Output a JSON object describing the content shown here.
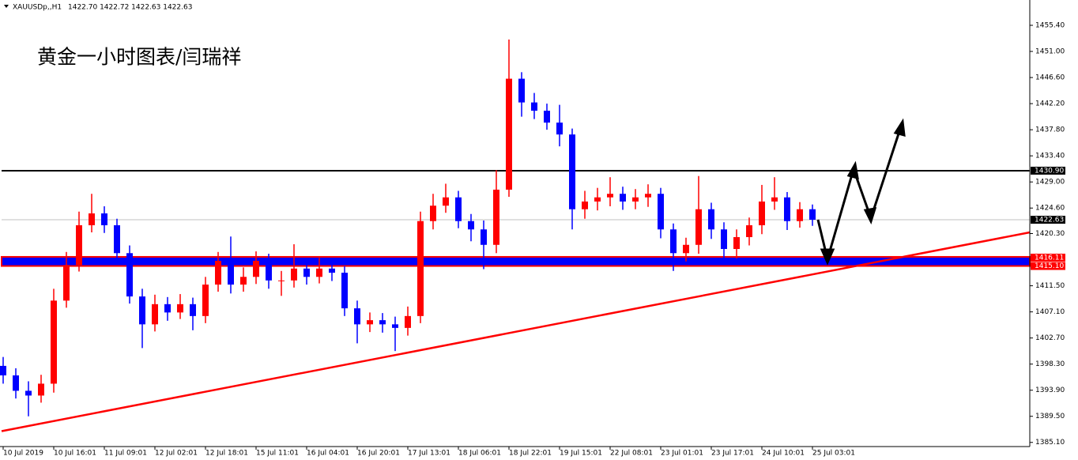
{
  "chart_data": {
    "type": "candlestick",
    "title": "黄金一小时图表/闫瑞祥",
    "header_symbol": "XAUUSDp,,H1",
    "header_quote": "1422.70 1422.72 1422.63 1422.63",
    "up_color": "#ff0000",
    "down_color": "#0000ff",
    "x": [
      0,
      4,
      8,
      12,
      16,
      20,
      24,
      28,
      32,
      36,
      40,
      44,
      48,
      52,
      56,
      60,
      64,
      68,
      72,
      76,
      80,
      84,
      88,
      92,
      96,
      100,
      104,
      108,
      112,
      116,
      120,
      124,
      128,
      132,
      136,
      140,
      144,
      148,
      152,
      156,
      160,
      164,
      168,
      172,
      176,
      180,
      184,
      188,
      192,
      196,
      200,
      204,
      208,
      212,
      216,
      220,
      224,
      228,
      232,
      236,
      240,
      244,
      248,
      252,
      256
    ],
    "open": [
      1398.0,
      1396.4,
      1393.8,
      1393.0,
      1395.0,
      1409.0,
      1415.0,
      1421.7,
      1423.7,
      1421.7,
      1417.0,
      1409.7,
      1405.0,
      1408.4,
      1407.0,
      1408.4,
      1406.4,
      1411.7,
      1415.7,
      1411.7,
      1413.0,
      1415.7,
      1412.4,
      1412.4,
      1414.4,
      1413.0,
      1414.4,
      1413.7,
      1407.7,
      1405.0,
      1405.7,
      1405.0,
      1404.4,
      1406.4,
      1422.4,
      1425.0,
      1426.4,
      1422.4,
      1421.0,
      1418.4,
      1427.7,
      1446.4,
      1442.4,
      1441.0,
      1439.0,
      1437.0,
      1424.4,
      1425.7,
      1426.4,
      1427.0,
      1425.7,
      1426.4,
      1427.0,
      1421.0,
      1417.0,
      1418.4,
      1424.4,
      1421.0,
      1417.7,
      1419.7,
      1421.7,
      1425.7,
      1426.4,
      1422.4,
      1424.4
    ],
    "high": [
      1399.5,
      1397.6,
      1395.4,
      1396.5,
      1411.0,
      1417.2,
      1424.0,
      1427.0,
      1424.9,
      1422.8,
      1418.3,
      1411.0,
      1410.0,
      1409.6,
      1410.1,
      1409.5,
      1413.0,
      1417.2,
      1419.8,
      1414.6,
      1417.3,
      1416.9,
      1414.0,
      1418.5,
      1415.6,
      1416.2,
      1415.5,
      1414.8,
      1409.0,
      1407.0,
      1406.9,
      1406.3,
      1408.0,
      1424.0,
      1427.0,
      1428.7,
      1427.5,
      1423.6,
      1422.5,
      1431.0,
      1453.0,
      1447.5,
      1444.0,
      1442.2,
      1442.0,
      1438.0,
      1427.5,
      1428.0,
      1429.8,
      1428.2,
      1427.8,
      1428.6,
      1428.0,
      1422.0,
      1419.6,
      1430.0,
      1425.5,
      1422.2,
      1421.0,
      1423.0,
      1428.5,
      1429.8,
      1427.3,
      1425.6,
      1425.2
    ],
    "low": [
      1395.0,
      1392.5,
      1389.5,
      1391.8,
      1393.5,
      1407.8,
      1413.9,
      1420.5,
      1420.4,
      1415.8,
      1408.5,
      1401.0,
      1403.8,
      1405.6,
      1405.9,
      1404.0,
      1405.2,
      1410.5,
      1410.2,
      1410.5,
      1411.8,
      1411.0,
      1409.8,
      1411.2,
      1411.7,
      1411.9,
      1412.3,
      1406.4,
      1401.8,
      1403.7,
      1403.6,
      1400.5,
      1403.1,
      1405.2,
      1421.0,
      1423.8,
      1421.2,
      1419.0,
      1414.3,
      1417.0,
      1426.5,
      1440.0,
      1439.6,
      1437.8,
      1435.0,
      1421.0,
      1422.8,
      1424.2,
      1424.9,
      1424.3,
      1424.4,
      1424.8,
      1419.5,
      1414.0,
      1415.6,
      1416.9,
      1419.4,
      1416.0,
      1416.1,
      1418.3,
      1420.2,
      1424.3,
      1420.9,
      1421.3,
      1421.6
    ],
    "close": [
      1396.4,
      1393.8,
      1393.0,
      1395.0,
      1409.0,
      1415.0,
      1421.7,
      1423.7,
      1421.7,
      1417.0,
      1409.7,
      1405.0,
      1408.4,
      1407.0,
      1408.4,
      1406.4,
      1411.7,
      1415.7,
      1411.7,
      1413.0,
      1415.7,
      1412.4,
      1412.4,
      1414.4,
      1413.0,
      1414.4,
      1413.7,
      1407.7,
      1405.0,
      1405.7,
      1405.0,
      1404.4,
      1406.4,
      1422.4,
      1425.0,
      1426.4,
      1422.4,
      1421.0,
      1418.4,
      1427.7,
      1446.4,
      1442.4,
      1441.0,
      1439.0,
      1437.0,
      1424.4,
      1425.7,
      1426.4,
      1427.0,
      1425.7,
      1426.4,
      1427.0,
      1421.0,
      1417.0,
      1418.4,
      1424.4,
      1421.0,
      1417.7,
      1419.7,
      1421.7,
      1425.7,
      1426.4,
      1422.4,
      1424.4,
      1422.63
    ],
    "xlim": [
      -0.5,
      324.75
    ],
    "ylim": [
      1384.4,
      1459.0
    ],
    "xticks": [
      {
        "value": 0,
        "label": "10 Jul 2019"
      },
      {
        "value": 16,
        "label": "10 Jul 16:01"
      },
      {
        "value": 32,
        "label": "11 Jul 09:01"
      },
      {
        "value": 48,
        "label": "12 Jul 02:01"
      },
      {
        "value": 64,
        "label": "12 Jul 18:01"
      },
      {
        "value": 80,
        "label": "15 Jul 11:01"
      },
      {
        "value": 96,
        "label": "16 Jul 04:01"
      },
      {
        "value": 112,
        "label": "16 Jul 20:01"
      },
      {
        "value": 128,
        "label": "17 Jul 13:01"
      },
      {
        "value": 144,
        "label": "18 Jul 06:01"
      },
      {
        "value": 160,
        "label": "18 Jul 22:01"
      },
      {
        "value": 176,
        "label": "19 Jul 15:01"
      },
      {
        "value": 192,
        "label": "22 Jul 08:01"
      },
      {
        "value": 208,
        "label": "23 Jul 01:01"
      },
      {
        "value": 224,
        "label": "23 Jul 17:01"
      },
      {
        "value": 240,
        "label": "24 Jul 10:01"
      },
      {
        "value": 256,
        "label": "25 Jul 03:01"
      }
    ],
    "yticks": [
      {
        "value": 1455.4,
        "label": "1455.40"
      },
      {
        "value": 1451.0,
        "label": "1451.00"
      },
      {
        "value": 1446.6,
        "label": "1446.60"
      },
      {
        "value": 1442.2,
        "label": "1442.20"
      },
      {
        "value": 1437.8,
        "label": "1437.80"
      },
      {
        "value": 1433.4,
        "label": "1433.40"
      },
      {
        "value": 1429.0,
        "label": "1429.00"
      },
      {
        "value": 1424.6,
        "label": "1424.60"
      },
      {
        "value": 1420.3,
        "label": "1420.30"
      },
      {
        "value": 1411.5,
        "label": "1411.50"
      },
      {
        "value": 1407.1,
        "label": "1407.10"
      },
      {
        "value": 1402.7,
        "label": "1402.70"
      },
      {
        "value": 1398.3,
        "label": "1398.30"
      },
      {
        "value": 1393.9,
        "label": "1393.90"
      },
      {
        "value": 1389.5,
        "label": "1389.50"
      },
      {
        "value": 1385.1,
        "label": "1385.10"
      }
    ],
    "resistance": {
      "value": 1430.9,
      "label": "1430.90",
      "color": "#000000"
    },
    "price_line": {
      "value": 1422.63,
      "label": "1422.63",
      "color": "#c0c0c0"
    },
    "support_band": {
      "values": [
        1416.11,
        1415.1
      ],
      "labels": [
        "1416.11",
        "1415.10"
      ],
      "color": "#0000ff",
      "border": "#ff0000"
    },
    "trendline": {
      "x": [
        -0.5,
        324.75
      ],
      "y": [
        1387.0,
        1420.5
      ],
      "color": "#ff0000"
    }
  }
}
